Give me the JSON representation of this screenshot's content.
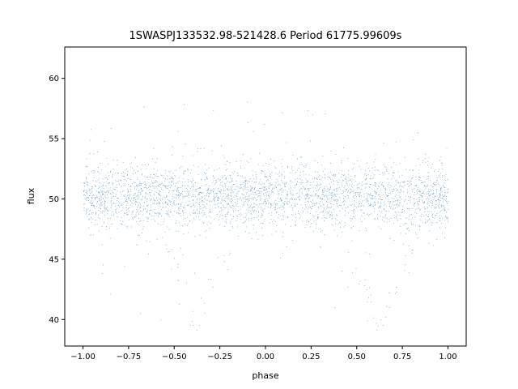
{
  "chart_data": {
    "type": "scatter",
    "title": "1SWASPJ133532.98-521428.6 Period 61775.99609s",
    "xlabel": "phase",
    "ylabel": "flux",
    "xlim": [
      -1.1,
      1.1
    ],
    "ylim": [
      37.8,
      62.6
    ],
    "xticks": [
      -1.0,
      -0.75,
      -0.5,
      -0.25,
      0.0,
      0.25,
      0.5,
      0.75,
      1.0
    ],
    "xtick_labels": [
      "−1.00",
      "−0.75",
      "−0.50",
      "−0.25",
      "0.00",
      "0.25",
      "0.50",
      "0.75",
      "1.00"
    ],
    "yticks": [
      40,
      45,
      50,
      55,
      60
    ],
    "ytick_labels": [
      "40",
      "45",
      "50",
      "55",
      "60"
    ],
    "grid": false,
    "legend": "none",
    "marker_color": "#1f77b4",
    "phase_range": [
      -1.0,
      1.0
    ],
    "baseline_flux": 50.2,
    "eclipse_centers": [
      -0.38,
      0.62
    ],
    "eclipse_min_flux": 39.0,
    "approx_point_count": 60000
  }
}
